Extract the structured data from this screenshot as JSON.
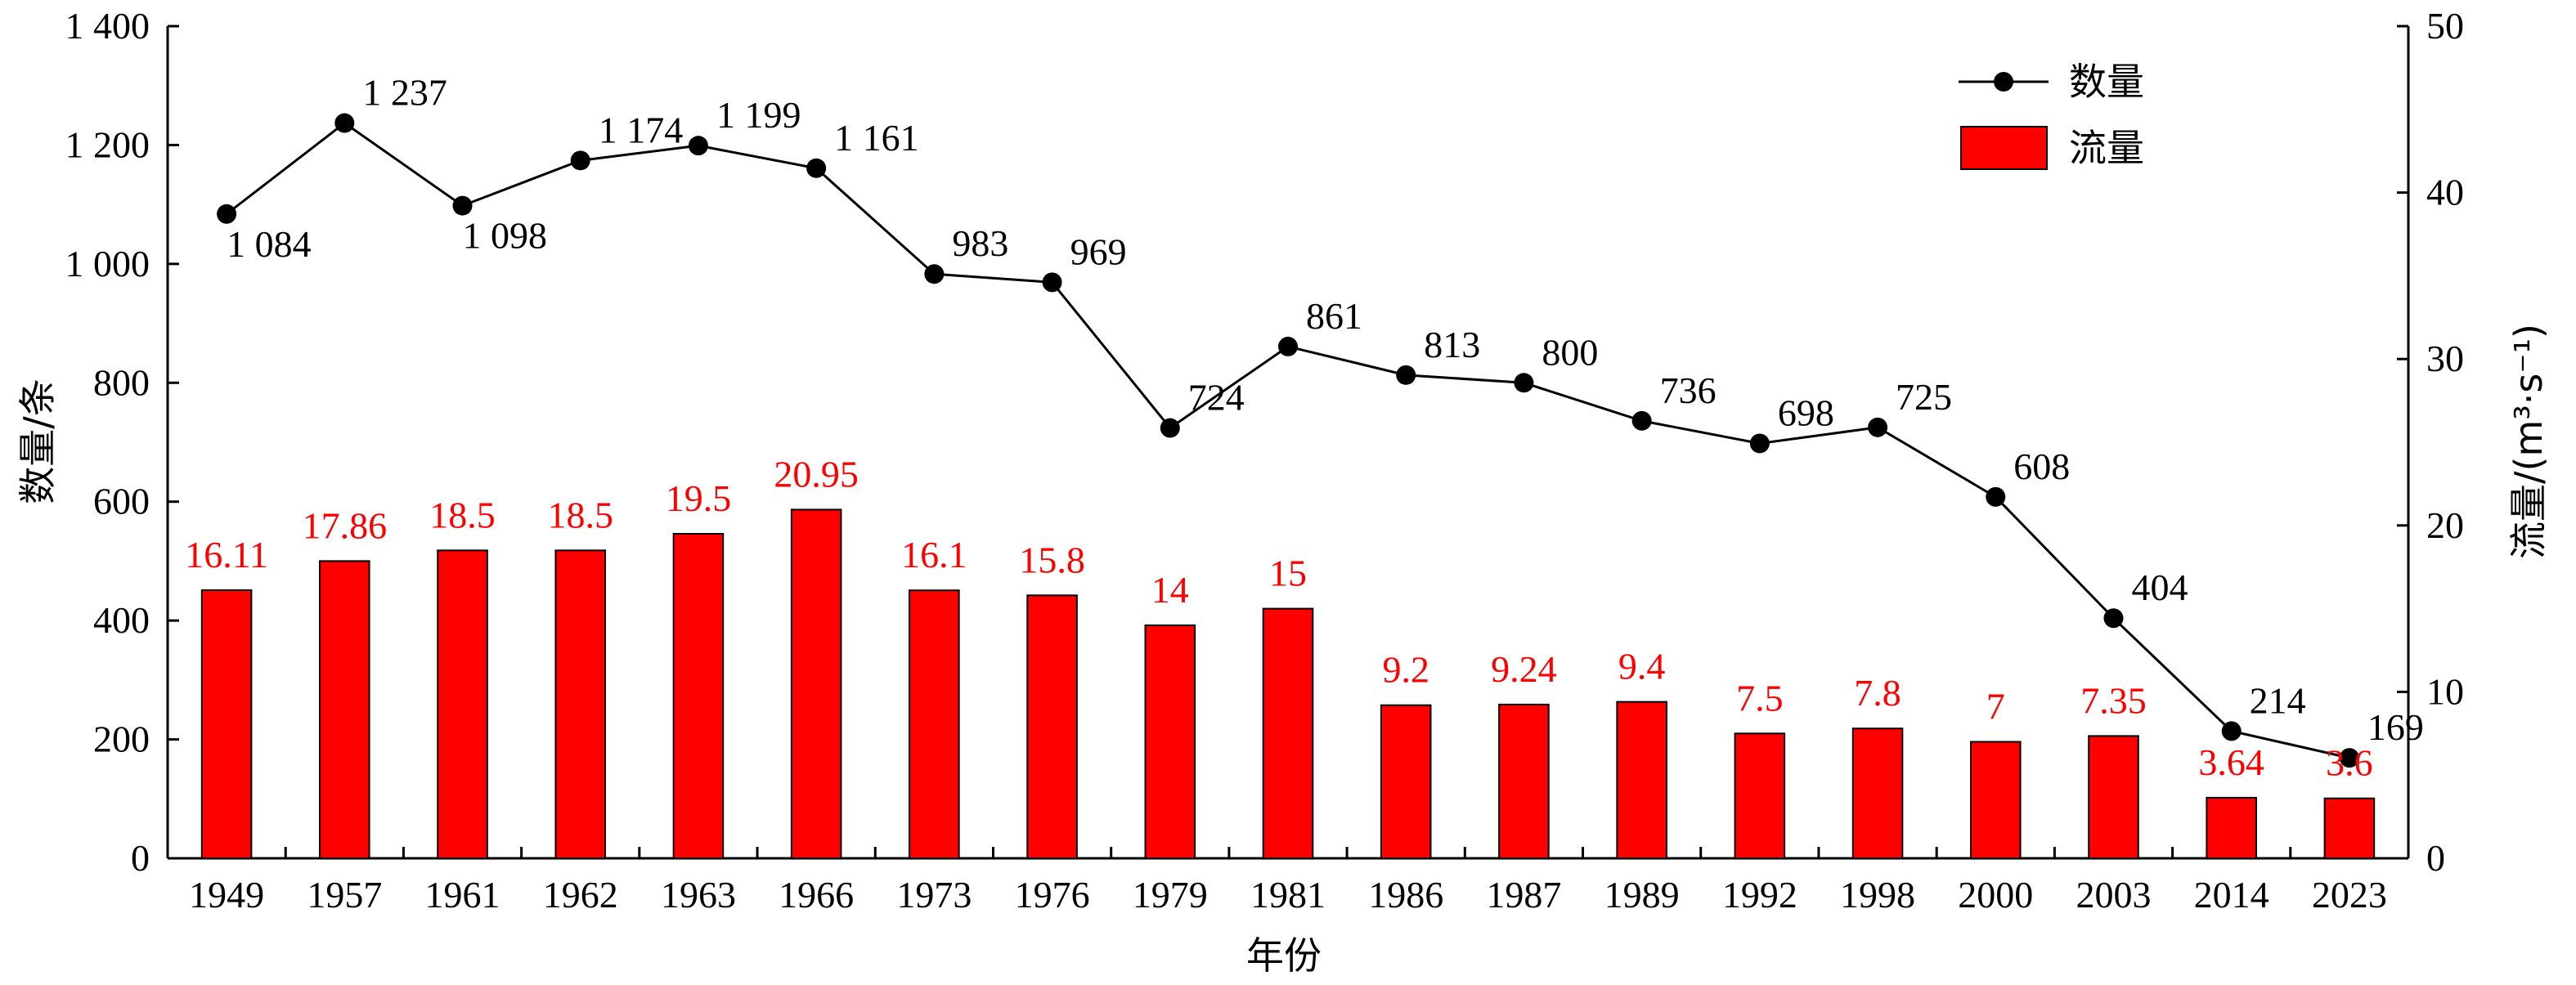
{
  "chart_data": {
    "type": "bar+line",
    "categories": [
      "1949",
      "1957",
      "1961",
      "1962",
      "1963",
      "1966",
      "1973",
      "1976",
      "1979",
      "1981",
      "1986",
      "1987",
      "1989",
      "1992",
      "1998",
      "2000",
      "2003",
      "2014",
      "2023"
    ],
    "series": [
      {
        "name": "数量",
        "type": "line",
        "axis": "left",
        "values": [
          1084,
          1237,
          1098,
          1174,
          1199,
          1161,
          983,
          969,
          724,
          861,
          813,
          800,
          736,
          698,
          725,
          608,
          404,
          214,
          169
        ],
        "labels": [
          "1 084",
          "1 237",
          "1 098",
          "1 174",
          "1 199",
          "1 161",
          "983",
          "969",
          "724",
          "861",
          "813",
          "800",
          "736",
          "698",
          "725",
          "608",
          "404",
          "214",
          "169"
        ],
        "color": "#000000"
      },
      {
        "name": "流量",
        "type": "bar",
        "axis": "right",
        "values": [
          16.11,
          17.86,
          18.5,
          18.5,
          19.5,
          20.95,
          16.1,
          15.8,
          14,
          15,
          9.2,
          9.24,
          9.4,
          7.5,
          7.8,
          7,
          7.35,
          3.64,
          3.6
        ],
        "labels": [
          "16.11",
          "17.86",
          "18.5",
          "18.5",
          "19.5",
          "20.95",
          "16.1",
          "15.8",
          "14",
          "15",
          "9.2",
          "9.24",
          "9.4",
          "7.5",
          "7.8",
          "7",
          "7.35",
          "3.64",
          "3.6"
        ],
        "color": "#ff0000"
      }
    ],
    "xlabel": "年份",
    "ylabel_left": "数量/条",
    "ylabel_right": "流量/(m³·s⁻¹)",
    "ylim_left": [
      0,
      1400
    ],
    "ylim_right": [
      0,
      50
    ],
    "yticks_left": [
      "0",
      "200",
      "400",
      "600",
      "800",
      "1 000",
      "1 200",
      "1 400"
    ],
    "yticks_right": [
      "0",
      "10",
      "20",
      "30",
      "40",
      "50"
    ],
    "grid": false,
    "legend_position": "top-right"
  }
}
